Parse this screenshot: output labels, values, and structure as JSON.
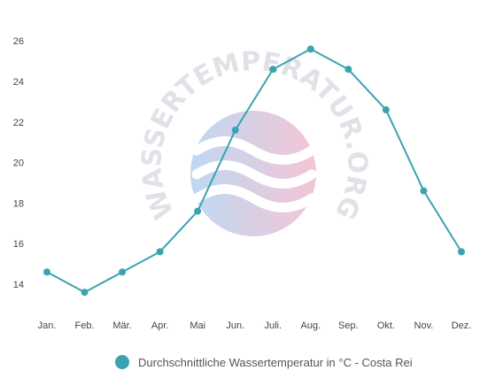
{
  "chart_data": {
    "type": "line",
    "categories": [
      "Jan.",
      "Feb.",
      "Mär.",
      "Apr.",
      "Mai",
      "Jun.",
      "Juli.",
      "Aug.",
      "Sep.",
      "Okt.",
      "Nov.",
      "Dez."
    ],
    "series": [
      {
        "name": "Durchschnittliche Wassertemperatur in °C - Costa Rei",
        "values": [
          14.6,
          13.6,
          14.6,
          15.6,
          17.6,
          21.6,
          24.6,
          25.6,
          24.6,
          22.6,
          18.6,
          15.6
        ],
        "color": "#3aa3b0"
      }
    ],
    "y_ticks": [
      "14",
      "16",
      "18",
      "20",
      "22",
      "24",
      "26"
    ],
    "ylim": [
      13,
      26.5
    ],
    "grid": false,
    "legend_position": "bottom-center"
  },
  "watermark": {
    "text": "WASSERTEMPERATUR.ORG"
  },
  "colors": {
    "line": "#3aa3b0",
    "axis_text": "#444444",
    "legend_text": "#555555"
  }
}
